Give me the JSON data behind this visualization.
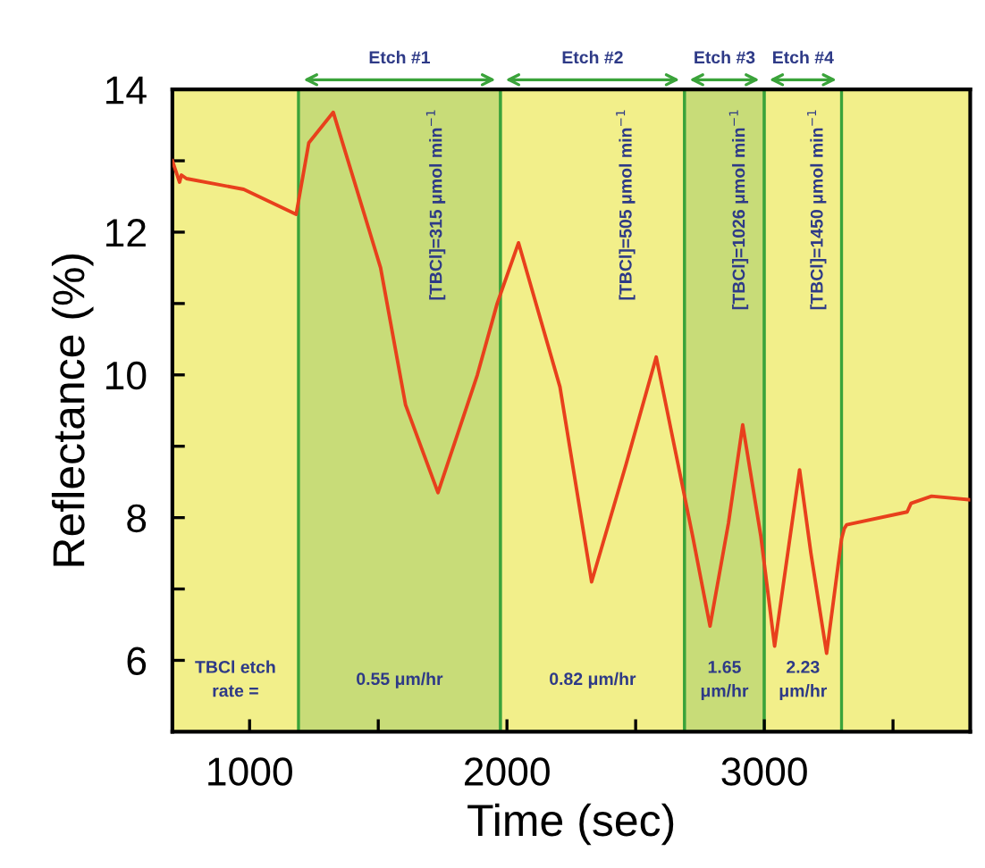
{
  "chart_data": {
    "type": "line",
    "xlabel": "Time (sec)",
    "ylabel": "Reflectance (%)",
    "series": [
      {
        "color": "#e8401c",
        "x": [
          700,
          728,
          735,
          755,
          977,
          1181,
          1230,
          1325,
          1467,
          1509,
          1606,
          1732,
          1885,
          1962,
          2045,
          2206,
          2329,
          2463,
          2580,
          2721,
          2789,
          2861,
          2916,
          2986,
          3040,
          3091,
          3137,
          3181,
          3242,
          3300,
          3311,
          3320,
          3555,
          3570,
          3650,
          3800
        ],
        "values": [
          13.0,
          12.7,
          12.8,
          12.75,
          12.6,
          12.25,
          13.25,
          13.68,
          12.0,
          11.5,
          9.58,
          8.35,
          10.0,
          11.0,
          11.85,
          9.83,
          7.1,
          8.75,
          10.25,
          7.75,
          6.48,
          7.93,
          9.3,
          7.75,
          6.2,
          7.5,
          8.67,
          7.5,
          6.1,
          7.7,
          7.85,
          7.9,
          8.08,
          8.2,
          8.3,
          8.25
        ]
      }
    ],
    "xlim": [
      700,
      3800
    ],
    "ylim": [
      5,
      14
    ],
    "xticks": [
      1000,
      {
        "value": 1500,
        "label": null
      },
      2000,
      {
        "value": 2500,
        "label": null
      },
      3000,
      {
        "value": 3500,
        "label": null
      }
    ],
    "yticks": [
      6,
      {
        "value": 7,
        "label": null
      },
      8,
      {
        "value": 9,
        "label": null
      },
      10,
      {
        "value": 11,
        "label": null
      },
      12,
      {
        "value": 13,
        "label": null
      },
      14
    ],
    "grid": false,
    "legend": false,
    "marker": "none",
    "line_style": "solid",
    "bands": [
      {
        "axis": "x",
        "from": 1190,
        "to": 1975,
        "label": "Etch #1",
        "color": "#c8dc78"
      },
      {
        "axis": "x",
        "from": 1975,
        "to": 2690,
        "label": "Etch #2",
        "color": "#f2ef8a"
      },
      {
        "axis": "x",
        "from": 2690,
        "to": 3000,
        "label": "Etch #3",
        "color": "#c8dc78"
      },
      {
        "axis": "x",
        "from": 3000,
        "to": 3300,
        "label": "Etch #4",
        "color": "#f2ef8a"
      }
    ],
    "annotations": [
      "[TBCl]=315 μmol min$^{−1}$",
      "[TBCl]=505 μmol min$^{−1}$",
      "[TBCl]=1026 μmol min$^{−1}$",
      "[TBCl]=1450 μmol min$^{−1}$",
      "TBCl etch\nrate =",
      "0.55 μm/hr",
      "0.82 μm/hr",
      "1.65\nμm/hr",
      "2.23\nμm/hr"
    ]
  }
}
